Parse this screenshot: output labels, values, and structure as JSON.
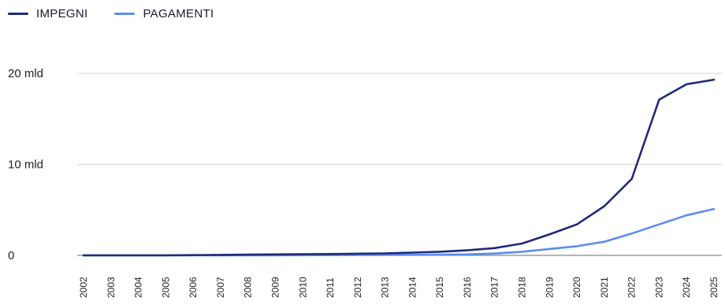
{
  "chart_data": {
    "type": "line",
    "x": [
      "2002",
      "2003",
      "2004",
      "2005",
      "2006",
      "2007",
      "2008",
      "2009",
      "2010",
      "2011",
      "2012",
      "2013",
      "2014",
      "2015",
      "2016",
      "2017",
      "2018",
      "2019",
      "2020",
      "2021",
      "2022",
      "2023",
      "2024",
      "2025"
    ],
    "series": [
      {
        "name": "IMPEGNI",
        "color": "#1f2a7a",
        "values": [
          0.0,
          0.0,
          0.0,
          0.0,
          0.03,
          0.05,
          0.08,
          0.1,
          0.13,
          0.15,
          0.18,
          0.22,
          0.3,
          0.4,
          0.55,
          0.8,
          1.3,
          2.3,
          3.4,
          5.4,
          8.4,
          17.1,
          18.8,
          19.3
        ]
      },
      {
        "name": "PAGAMENTI",
        "color": "#5b8def",
        "values": [
          0.0,
          0.0,
          0.0,
          0.0,
          0.0,
          0.0,
          0.0,
          0.01,
          0.02,
          0.03,
          0.04,
          0.05,
          0.06,
          0.08,
          0.1,
          0.2,
          0.4,
          0.7,
          1.0,
          1.5,
          2.4,
          3.4,
          4.4,
          5.1
        ]
      }
    ],
    "yticks": [
      {
        "value": 0,
        "label": "0"
      },
      {
        "value": 10,
        "label": "10 mld"
      },
      {
        "value": 20,
        "label": "20 mld"
      }
    ],
    "ylim": [
      0,
      20
    ],
    "grid": true,
    "legend_position": "top-left",
    "title": "",
    "xlabel": "",
    "ylabel": ""
  }
}
